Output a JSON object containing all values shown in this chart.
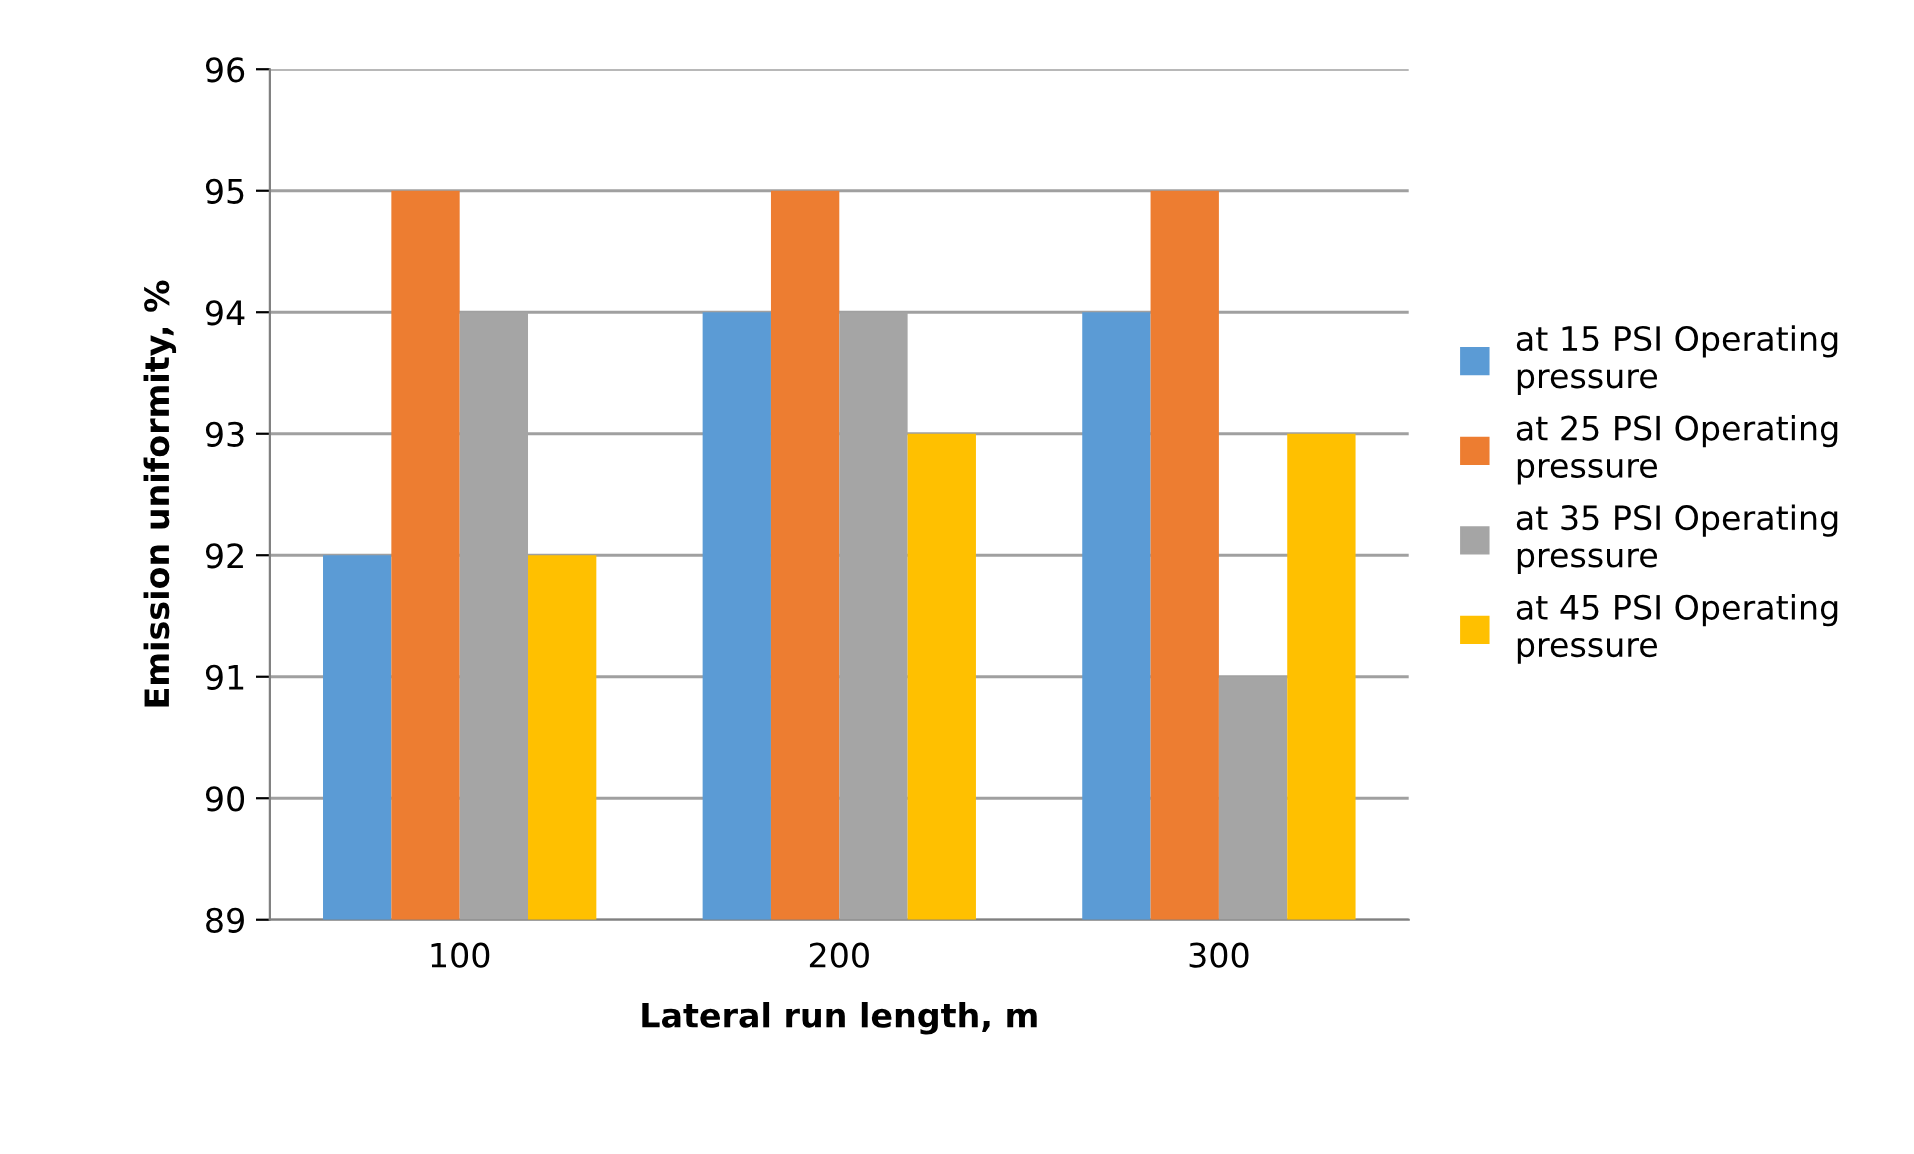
{
  "chart_data": {
    "type": "bar",
    "xlabel": "Lateral run length, m",
    "ylabel": "Emission uniformity, %",
    "categories": [
      "100",
      "200",
      "300"
    ],
    "series": [
      {
        "name": "at 15 PSI Operating pressure",
        "color": "#5b9bd5",
        "values": [
          92,
          94,
          94
        ]
      },
      {
        "name": "at 25 PSI Operating pressure",
        "color": "#ed7d31",
        "values": [
          95,
          95,
          95
        ]
      },
      {
        "name": "at 35 PSI Operating pressure",
        "color": "#a5a5a5",
        "values": [
          94,
          94,
          91
        ]
      },
      {
        "name": "at 45 PSI Operating pressure",
        "color": "#ffc000",
        "values": [
          92,
          93,
          93
        ]
      }
    ],
    "ylim": [
      89,
      96
    ],
    "yticks": [
      89,
      90,
      91,
      92,
      93,
      94,
      95,
      96
    ],
    "grid": "y",
    "legend": "right"
  }
}
